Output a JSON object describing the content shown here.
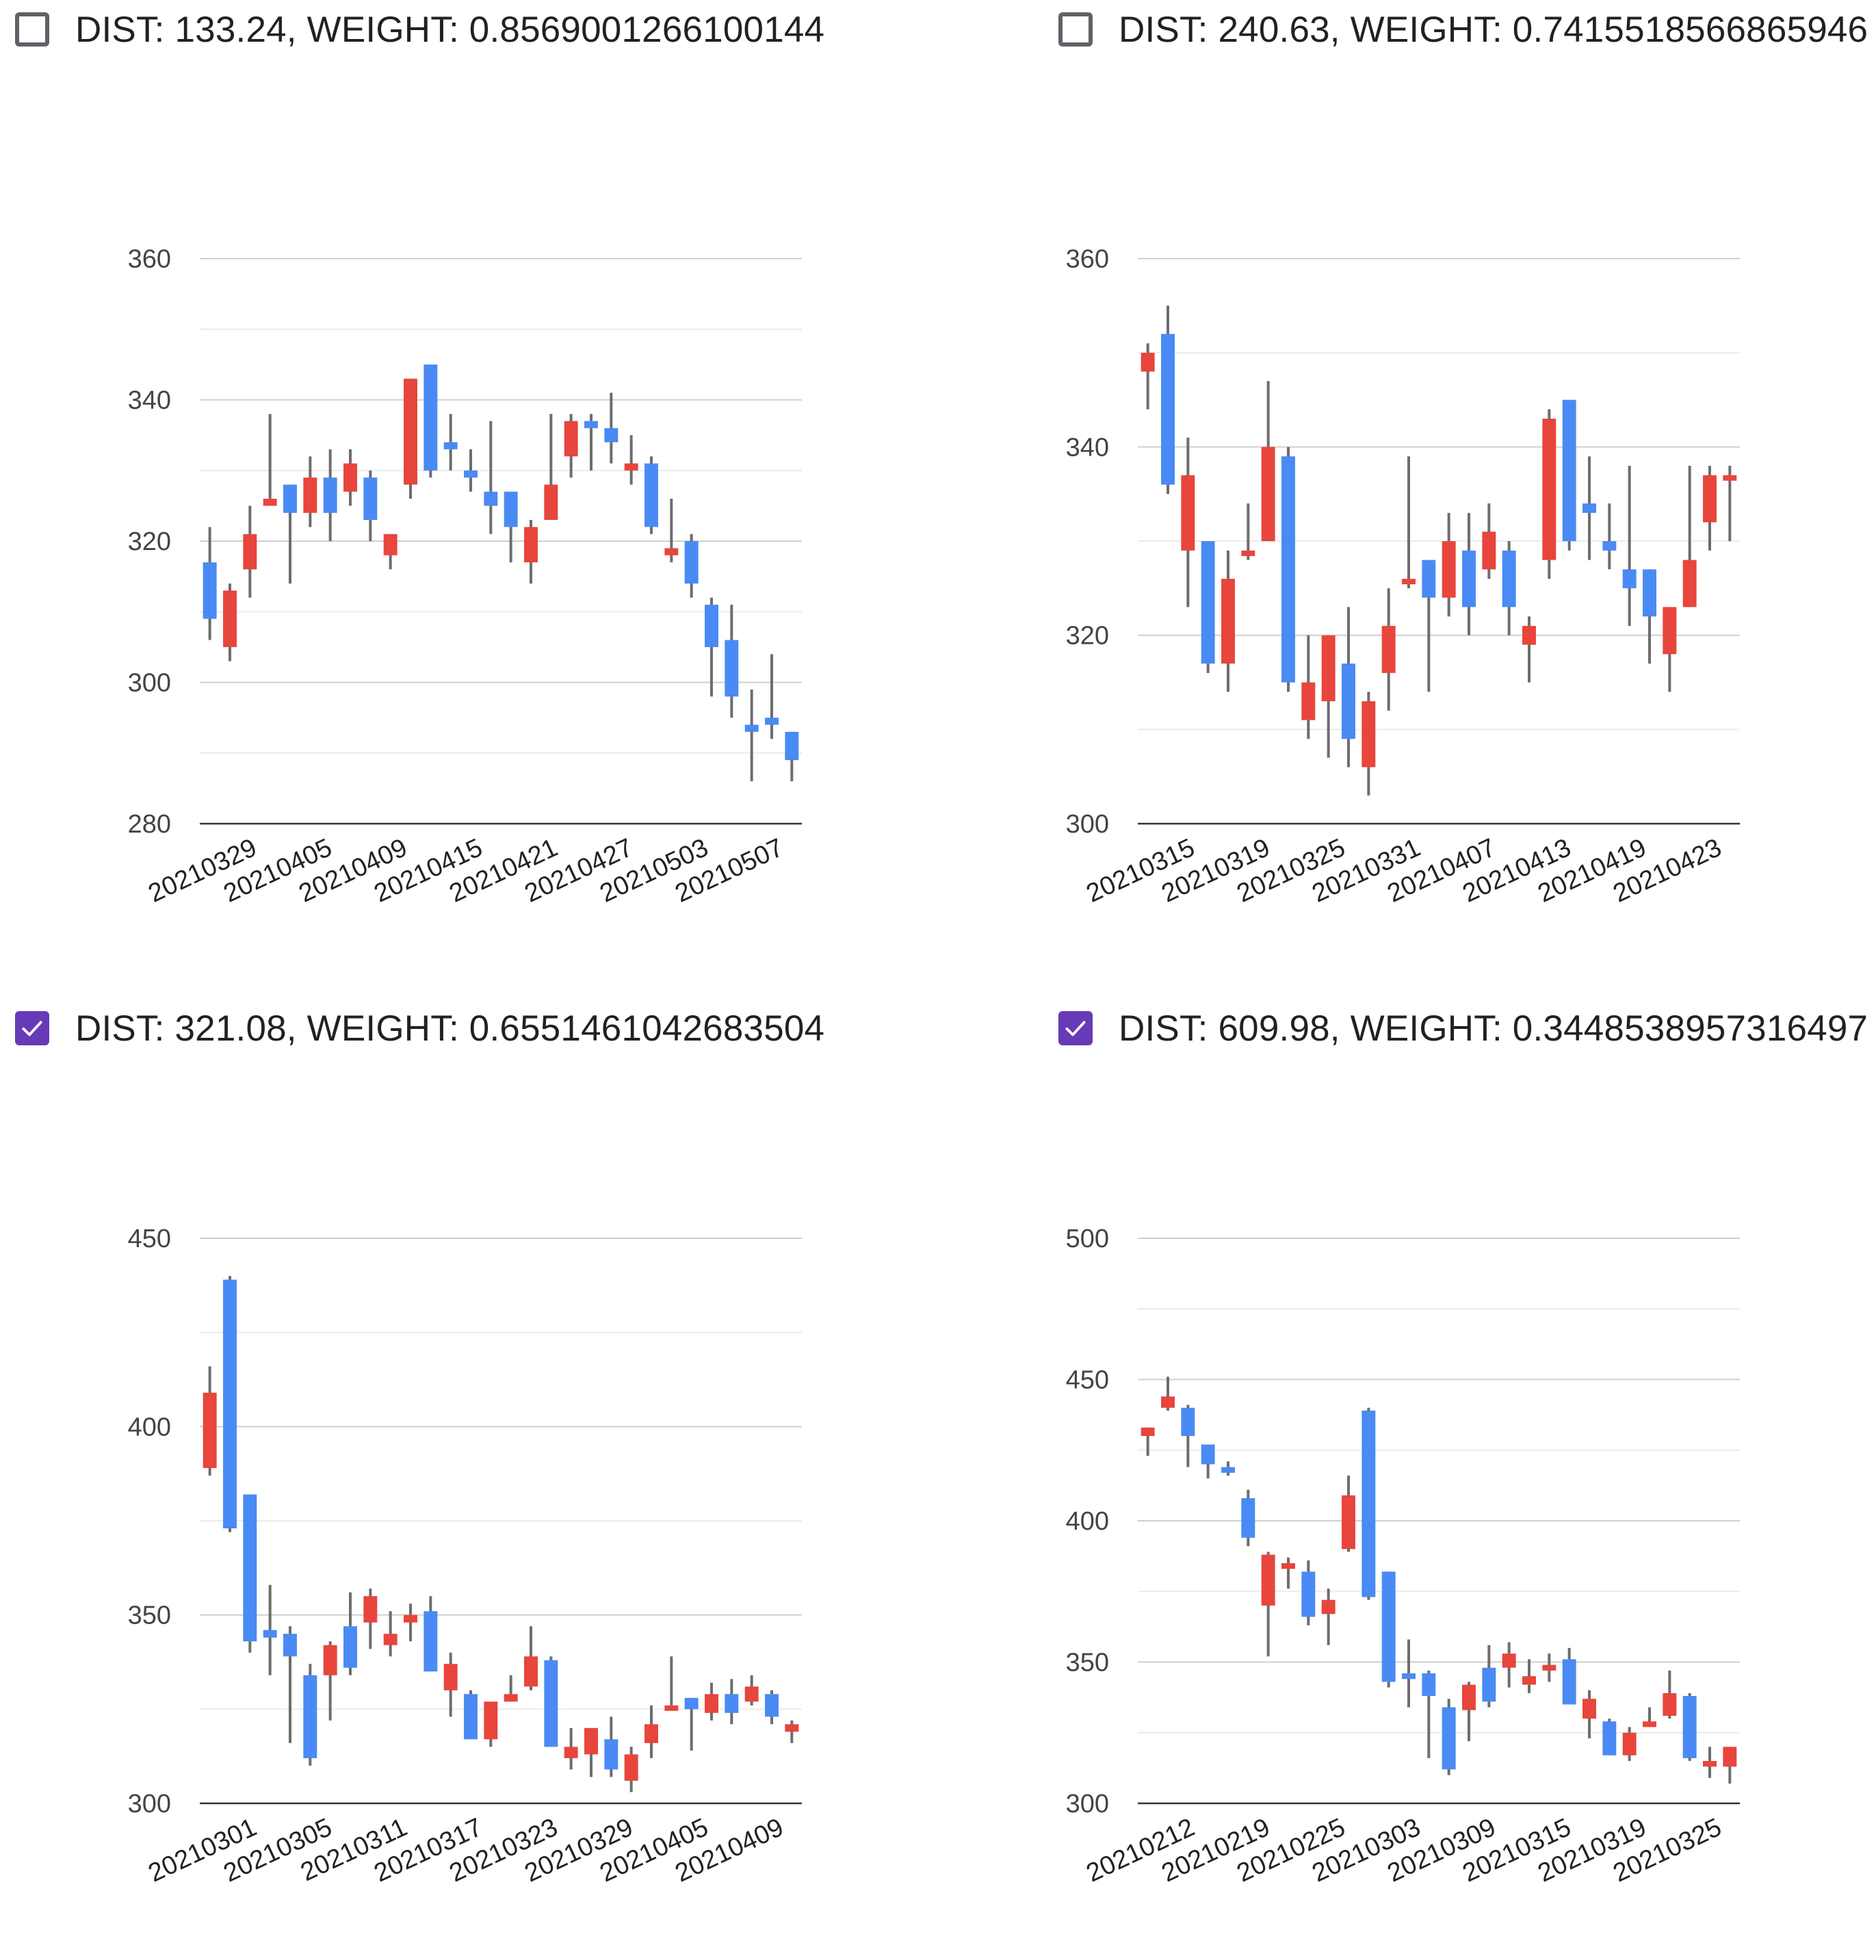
{
  "colors": {
    "up": "#e8453c",
    "down": "#4a8af4",
    "wick": "#6d6d6d",
    "grid": "#cfcfcf",
    "grid_minor": "#ebebeb",
    "checkbox_checked": "#673ab7",
    "checkbox_unchecked": "#5f6368"
  },
  "panels": [
    {
      "checked": false,
      "label": "DIST: 133.24, WEIGHT: 0.8569001266100144",
      "chart_data": {
        "type": "candlestick",
        "ylim": [
          280,
          360
        ],
        "yticks": [
          "360",
          "340",
          "320",
          "300",
          "280"
        ],
        "xtick_labels": [
          "20210329",
          "20210405",
          "20210409",
          "20210415",
          "20210421",
          "20210427",
          "20210503",
          "20210507"
        ],
        "candles": [
          [
            317,
            309,
            322,
            306
          ],
          [
            305,
            313,
            314,
            303
          ],
          [
            316,
            321,
            325,
            312
          ],
          [
            325,
            326,
            338,
            326
          ],
          [
            328,
            324,
            328,
            314
          ],
          [
            324,
            329,
            332,
            322
          ],
          [
            329,
            324,
            333,
            320
          ],
          [
            327,
            331,
            333,
            325
          ],
          [
            329,
            323,
            330,
            320
          ],
          [
            318,
            321,
            321,
            316
          ],
          [
            328,
            343,
            343,
            326
          ],
          [
            345,
            330,
            345,
            329
          ],
          [
            334,
            333,
            338,
            330
          ],
          [
            330,
            329,
            333,
            327
          ],
          [
            327,
            325,
            337,
            321
          ],
          [
            327,
            322,
            327,
            317
          ],
          [
            317,
            322,
            323,
            314
          ],
          [
            323,
            328,
            338,
            323
          ],
          [
            332,
            337,
            338,
            329
          ],
          [
            337,
            336,
            338,
            330
          ],
          [
            336,
            334,
            341,
            331
          ],
          [
            330,
            331,
            335,
            328
          ],
          [
            331,
            322,
            332,
            321
          ],
          [
            318,
            319,
            326,
            317
          ],
          [
            320,
            314,
            321,
            312
          ],
          [
            311,
            305,
            312,
            298
          ],
          [
            306,
            298,
            311,
            295
          ],
          [
            294,
            293,
            299,
            286
          ],
          [
            295,
            294,
            304,
            292
          ],
          [
            293,
            289,
            293,
            286
          ]
        ]
      }
    },
    {
      "checked": false,
      "label": "DIST: 240.63, WEIGHT: 0.7415518566865946",
      "chart_data": {
        "type": "candlestick",
        "ylim": [
          300,
          360
        ],
        "yticks": [
          "360",
          "340",
          "320",
          "300"
        ],
        "xtick_labels": [
          "20210315",
          "20210319",
          "20210325",
          "20210331",
          "20210407",
          "20210413",
          "20210419",
          "20210423"
        ],
        "candles": [
          [
            348,
            350,
            351,
            344
          ],
          [
            352,
            336,
            355,
            335
          ],
          [
            329,
            337,
            341,
            323
          ],
          [
            330,
            317,
            330,
            316
          ],
          [
            317,
            326,
            329,
            314
          ],
          [
            329,
            329,
            334,
            328
          ],
          [
            330,
            340,
            347,
            330
          ],
          [
            339,
            315,
            340,
            314
          ],
          [
            311,
            315,
            320,
            309
          ],
          [
            313,
            320,
            320,
            307
          ],
          [
            317,
            309,
            323,
            306
          ],
          [
            306,
            313,
            314,
            303
          ],
          [
            316,
            321,
            325,
            312
          ],
          [
            326,
            326,
            339,
            325
          ],
          [
            328,
            324,
            328,
            314
          ],
          [
            324,
            330,
            333,
            322
          ],
          [
            329,
            323,
            333,
            320
          ],
          [
            327,
            331,
            334,
            326
          ],
          [
            329,
            323,
            330,
            320
          ],
          [
            319,
            321,
            322,
            315
          ],
          [
            328,
            343,
            344,
            326
          ],
          [
            345,
            330,
            345,
            329
          ],
          [
            334,
            333,
            339,
            328
          ],
          [
            330,
            329,
            334,
            327
          ],
          [
            327,
            325,
            338,
            321
          ],
          [
            327,
            322,
            327,
            317
          ],
          [
            318,
            323,
            323,
            314
          ],
          [
            323,
            328,
            338,
            323
          ],
          [
            332,
            337,
            338,
            329
          ],
          [
            337,
            337,
            338,
            330
          ]
        ]
      }
    },
    {
      "checked": true,
      "label": "DIST: 321.08, WEIGHT: 0.6551461042683504",
      "chart_data": {
        "type": "candlestick",
        "ylim": [
          300,
          450
        ],
        "yticks": [
          "450",
          "400",
          "350",
          "300"
        ],
        "xtick_labels": [
          "20210301",
          "20210305",
          "20210311",
          "20210317",
          "20210323",
          "20210329",
          "20210405",
          "20210409"
        ],
        "candles": [
          [
            389,
            409,
            416,
            387
          ],
          [
            439,
            373,
            440,
            372
          ],
          [
            382,
            343,
            382,
            340
          ],
          [
            346,
            344,
            358,
            334
          ],
          [
            345,
            339,
            347,
            316
          ],
          [
            334,
            312,
            337,
            310
          ],
          [
            334,
            342,
            343,
            322
          ],
          [
            347,
            336,
            356,
            334
          ],
          [
            348,
            355,
            357,
            341
          ],
          [
            342,
            345,
            351,
            339
          ],
          [
            348,
            350,
            353,
            343
          ],
          [
            351,
            335,
            355,
            335
          ],
          [
            330,
            337,
            340,
            323
          ],
          [
            329,
            317,
            330,
            317
          ],
          [
            317,
            327,
            327,
            315
          ],
          [
            327,
            329,
            334,
            327
          ],
          [
            331,
            339,
            347,
            330
          ],
          [
            338,
            315,
            339,
            315
          ],
          [
            312,
            315,
            320,
            309
          ],
          [
            313,
            320,
            320,
            307
          ],
          [
            317,
            309,
            323,
            307
          ],
          [
            306,
            313,
            315,
            303
          ],
          [
            316,
            321,
            326,
            312
          ],
          [
            325,
            326,
            339,
            326
          ],
          [
            328,
            325,
            328,
            314
          ],
          [
            324,
            329,
            332,
            322
          ],
          [
            329,
            324,
            333,
            321
          ],
          [
            327,
            331,
            334,
            326
          ],
          [
            329,
            323,
            330,
            321
          ],
          [
            319,
            321,
            322,
            316
          ]
        ]
      }
    },
    {
      "checked": true,
      "label": "DIST: 609.98, WEIGHT: 0.3448538957316497",
      "chart_data": {
        "type": "candlestick",
        "ylim": [
          300,
          500
        ],
        "yticks": [
          "500",
          "450",
          "400",
          "350",
          "300"
        ],
        "xtick_labels": [
          "20210212",
          "20210219",
          "20210225",
          "20210303",
          "20210309",
          "20210315",
          "20210319",
          "20210325"
        ],
        "candles": [
          [
            430,
            433,
            433,
            423
          ],
          [
            440,
            444,
            451,
            439
          ],
          [
            440,
            430,
            441,
            419
          ],
          [
            427,
            420,
            427,
            415
          ],
          [
            419,
            417,
            421,
            416
          ],
          [
            408,
            394,
            411,
            391
          ],
          [
            370,
            388,
            389,
            352
          ],
          [
            383,
            385,
            387,
            376
          ],
          [
            382,
            366,
            386,
            363
          ],
          [
            367,
            372,
            376,
            356
          ],
          [
            390,
            409,
            416,
            389
          ],
          [
            439,
            373,
            440,
            372
          ],
          [
            382,
            343,
            382,
            341
          ],
          [
            346,
            344,
            358,
            334
          ],
          [
            346,
            338,
            347,
            316
          ],
          [
            334,
            312,
            337,
            310
          ],
          [
            333,
            342,
            343,
            322
          ],
          [
            348,
            336,
            356,
            334
          ],
          [
            348,
            353,
            357,
            341
          ],
          [
            342,
            345,
            351,
            339
          ],
          [
            347,
            349,
            353,
            343
          ],
          [
            351,
            335,
            355,
            335
          ],
          [
            330,
            337,
            340,
            323
          ],
          [
            329,
            317,
            330,
            317
          ],
          [
            317,
            325,
            327,
            315
          ],
          [
            327,
            329,
            334,
            327
          ],
          [
            331,
            339,
            347,
            330
          ],
          [
            338,
            316,
            339,
            315
          ],
          [
            313,
            315,
            320,
            309
          ],
          [
            313,
            320,
            320,
            307
          ]
        ]
      }
    }
  ]
}
